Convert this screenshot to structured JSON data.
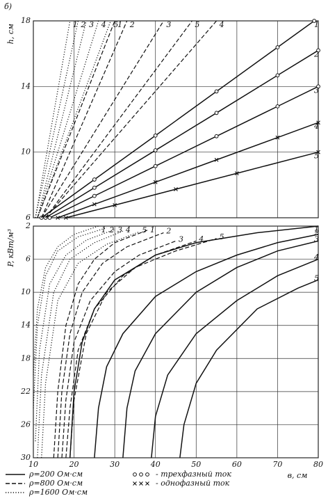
{
  "panel_label": "б)",
  "chart_data": [
    {
      "type": "line",
      "y_label": "h, см",
      "xlim": [
        10,
        80
      ],
      "ylim": [
        6,
        18
      ],
      "yticks": [
        6,
        10,
        14,
        18
      ],
      "grid": true,
      "series": [
        {
          "name": "1",
          "style": "solid",
          "marker": "circle",
          "x": [
            12,
            25,
            40,
            55,
            70,
            79
          ],
          "values": [
            6,
            8.33,
            11.01,
            13.7,
            16.39,
            18
          ]
        },
        {
          "name": "2",
          "style": "solid",
          "marker": "circle",
          "x": [
            13,
            25,
            40,
            55,
            70,
            80
          ],
          "values": [
            6,
            7.83,
            10.11,
            12.39,
            14.68,
            16.2
          ]
        },
        {
          "name": "3",
          "style": "solid",
          "marker": "circle",
          "x": [
            14,
            25,
            40,
            55,
            70,
            80
          ],
          "values": [
            6,
            7.33,
            9.15,
            10.97,
            12.79,
            14
          ]
        },
        {
          "name": "4",
          "style": "solid",
          "marker": "cross",
          "x": [
            16,
            25,
            40,
            55,
            70,
            80
          ],
          "values": [
            6,
            6.82,
            8.17,
            9.53,
            10.89,
            11.8
          ]
        },
        {
          "name": "5",
          "style": "solid",
          "marker": "cross",
          "x": [
            18,
            30,
            45,
            60,
            80
          ],
          "values": [
            6,
            6.77,
            7.74,
            8.71,
            10
          ]
        },
        {
          "name": "1",
          "style": "dashed",
          "x": [
            11,
            30
          ],
          "values": [
            6,
            18
          ]
        },
        {
          "name": "2",
          "style": "dashed",
          "x": [
            12,
            33
          ],
          "values": [
            6,
            18
          ]
        },
        {
          "name": "3",
          "style": "dashed",
          "x": [
            12,
            42
          ],
          "values": [
            6,
            18
          ]
        },
        {
          "name": "5",
          "style": "dashed",
          "x": [
            13,
            49
          ],
          "values": [
            6,
            18
          ]
        },
        {
          "name": "4",
          "style": "dashed",
          "x": [
            13,
            55
          ],
          "values": [
            6,
            18
          ]
        },
        {
          "name": "1",
          "style": "dotted",
          "x": [
            10.5,
            19
          ],
          "values": [
            6,
            18
          ]
        },
        {
          "name": "2",
          "style": "dotted",
          "x": [
            10.5,
            21
          ],
          "values": [
            6,
            18
          ]
        },
        {
          "name": "3",
          "style": "dotted",
          "x": [
            11,
            23
          ],
          "values": [
            6,
            18
          ]
        },
        {
          "name": "4",
          "style": "dotted",
          "x": [
            11,
            26
          ],
          "values": [
            6,
            18
          ]
        },
        {
          "name": "5",
          "style": "dotted",
          "x": [
            11,
            29
          ],
          "values": [
            6,
            18
          ]
        }
      ]
    },
    {
      "type": "line",
      "y_label": "P, кВт/м³",
      "x_label": "в, см",
      "xlim": [
        10,
        80
      ],
      "xticks": [
        10,
        20,
        30,
        40,
        50,
        60,
        70,
        80
      ],
      "ylim": [
        2,
        30
      ],
      "y_inverted": true,
      "yticks": [
        2,
        6,
        10,
        14,
        18,
        22,
        26,
        30
      ],
      "grid": true,
      "series": [
        {
          "name": "1",
          "style": "solid",
          "x": [
            19,
            20,
            22,
            25,
            30,
            40,
            50,
            65,
            80
          ],
          "values": [
            30,
            22,
            16,
            12,
            8.5,
            5.5,
            4,
            2.8,
            2
          ]
        },
        {
          "name": "2",
          "style": "solid",
          "x": [
            25,
            26,
            28,
            32,
            40,
            50,
            60,
            70,
            80
          ],
          "values": [
            30,
            24,
            19,
            15,
            10.5,
            7.5,
            5.5,
            4,
            3
          ]
        },
        {
          "name": "3",
          "style": "solid",
          "x": [
            32,
            33,
            35,
            40,
            50,
            60,
            70,
            80
          ],
          "values": [
            30,
            24,
            19.5,
            15,
            10,
            7,
            5,
            3.8
          ]
        },
        {
          "name": "4",
          "style": "solid",
          "x": [
            39,
            40,
            43,
            50,
            60,
            70,
            80
          ],
          "values": [
            30,
            25,
            20,
            15,
            11,
            8,
            6
          ]
        },
        {
          "name": "5",
          "style": "solid",
          "x": [
            46,
            47,
            50,
            55,
            65,
            75,
            80
          ],
          "values": [
            30,
            26,
            21,
            17,
            12,
            9.5,
            8.5
          ]
        },
        {
          "name": "1",
          "style": "dashed",
          "x": [
            15,
            16,
            18,
            21,
            25,
            30,
            38
          ],
          "values": [
            30,
            22,
            14,
            9,
            6,
            4,
            2.5
          ]
        },
        {
          "name": "2",
          "style": "dashed",
          "x": [
            16,
            17,
            19,
            22,
            27,
            33,
            42
          ],
          "values": [
            30,
            22,
            15,
            10,
            6.5,
            4.5,
            2.8
          ]
        },
        {
          "name": "3",
          "style": "dashed",
          "x": [
            17,
            18,
            20,
            24,
            30,
            36,
            45
          ],
          "values": [
            30,
            23,
            16,
            11,
            7.5,
            5.5,
            3.8
          ]
        },
        {
          "name": "4",
          "style": "dashed",
          "x": [
            18,
            19,
            21,
            25,
            32,
            40,
            50
          ],
          "values": [
            30,
            24,
            17,
            12,
            8,
            5.5,
            3.8
          ]
        },
        {
          "name": "5",
          "style": "dashed",
          "x": [
            19,
            20,
            23,
            28,
            35,
            45,
            55
          ],
          "values": [
            30,
            23,
            15,
            10,
            7,
            5,
            3.5
          ]
        },
        {
          "name": "1",
          "style": "dotted",
          "x": [
            10,
            11,
            13,
            16,
            20,
            26
          ],
          "values": [
            20,
            12,
            7,
            4.5,
            3,
            2
          ]
        },
        {
          "name": "2",
          "style": "dotted",
          "x": [
            10,
            11,
            13,
            16,
            21,
            28
          ],
          "values": [
            24,
            14,
            8,
            5,
            3.3,
            2.2
          ]
        },
        {
          "name": "3",
          "style": "dotted",
          "x": [
            10.5,
            11.5,
            14,
            18,
            23,
            30
          ],
          "values": [
            28,
            17,
            9,
            5.5,
            3.7,
            2.4
          ]
        },
        {
          "name": "4",
          "style": "dotted",
          "x": [
            11,
            12,
            15,
            19,
            25,
            32
          ],
          "values": [
            30,
            20,
            10,
            6,
            4,
            2.6
          ]
        },
        {
          "name": "5",
          "style": "dotted",
          "x": [
            12,
            13,
            16,
            21,
            28,
            36
          ],
          "values": [
            30,
            21,
            11,
            6.5,
            4.2,
            2.7
          ]
        }
      ],
      "legend": [
        {
          "label": "ρ=200 Ом·см",
          "style": "solid"
        },
        {
          "label": "ρ=800 Ом·см",
          "style": "dashed"
        },
        {
          "label": "ρ=1600 Ом·см",
          "style": "dotted"
        },
        {
          "label": "- трехфазный ток",
          "marker": "circle"
        },
        {
          "label": "- однофазный ток",
          "marker": "cross"
        }
      ]
    }
  ]
}
